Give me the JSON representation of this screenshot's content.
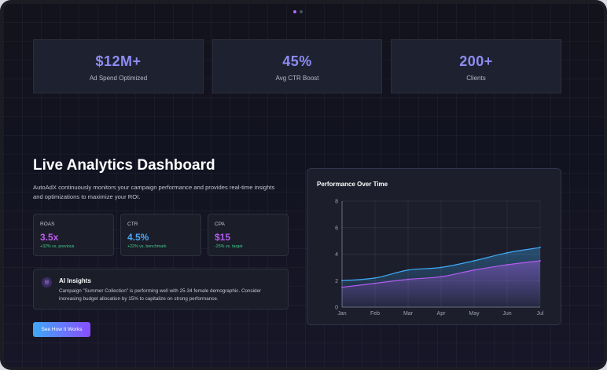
{
  "stats": [
    {
      "value": "$12M+",
      "label": "Ad Spend Optimized"
    },
    {
      "value": "45%",
      "label": "Avg CTR Boost"
    },
    {
      "value": "200+",
      "label": "Clients"
    }
  ],
  "dashboard": {
    "title": "Live Analytics Dashboard",
    "description": "AutoAdX continuously monitors your campaign performance and provides real-time insights and optimizations to maximize your ROI.",
    "metrics": [
      {
        "label": "ROAS",
        "value": "3.5x",
        "change": "+32% vs. previous",
        "color": "#c05cf0"
      },
      {
        "label": "CTR",
        "value": "4.5%",
        "change": "+22% vs. benchmark",
        "color": "#4aa8f5"
      },
      {
        "label": "CPA",
        "value": "$15",
        "change": "-25% vs. target",
        "color": "#b25cf0"
      }
    ],
    "insight": {
      "icon": "ai-insight-icon",
      "title": "AI Insights",
      "text": "Campaign \"Summer Collection\" is performing well with 25-34 female demographic. Consider increasing budget allocation by 15% to capitalize on strong performance."
    },
    "cta_label": "See How It Works"
  },
  "chart_data": {
    "type": "area",
    "title": "Performance Over Time",
    "x": [
      "Jan",
      "Feb",
      "Mar",
      "Apr",
      "May",
      "Jun",
      "Jul"
    ],
    "ylim": [
      0,
      8
    ],
    "yticks": [
      0,
      2,
      4,
      6,
      8
    ],
    "grid": true,
    "series": [
      {
        "values": [
          2.0,
          2.2,
          2.8,
          3.0,
          3.5,
          4.1,
          4.5
        ],
        "color": "#3fa9f5"
      },
      {
        "values": [
          1.5,
          1.8,
          2.1,
          2.3,
          2.8,
          3.2,
          3.5
        ],
        "color": "#b25cf0"
      }
    ]
  }
}
